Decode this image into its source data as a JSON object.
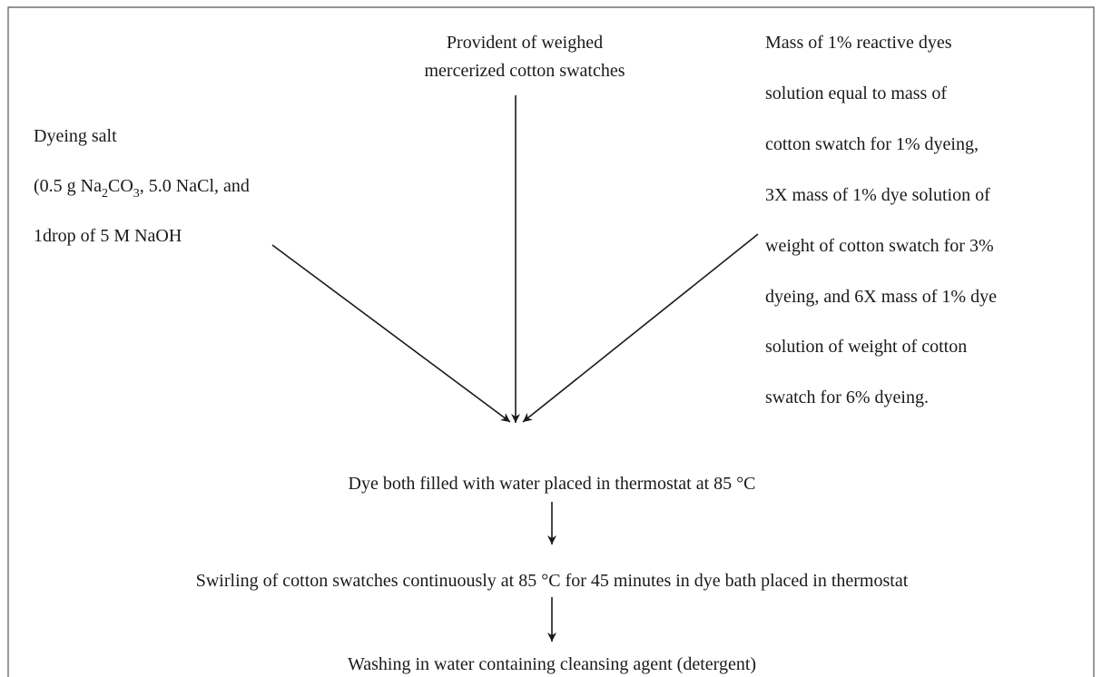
{
  "nodes": [
    {
      "id": "cotton",
      "lines": [
        "Provident of weighed",
        "mercerized cotton swatches"
      ]
    },
    {
      "id": "salt",
      "lines": [
        "Dyeing salt",
        "1drop of 5 M NaOH"
      ],
      "formula": [
        "(0.5 g Na",
        "2",
        "CO",
        "3",
        ", 5.0 NaCl, and"
      ]
    },
    {
      "id": "dye",
      "lines": [
        "Mass of 1% reactive dyes",
        "solution equal to mass of",
        "cotton swatch for 1% dyeing,",
        "3X mass of 1% dye solution of",
        "weight of cotton swatch for 3%",
        "dyeing, and 6X mass of 1% dye",
        "solution of weight of cotton",
        "swatch for 6% dyeing."
      ]
    },
    {
      "id": "bath",
      "lines": [
        "Dye both filled with water placed in thermostat at 85 °C"
      ]
    },
    {
      "id": "swirl",
      "lines": [
        "Swirling of cotton swatches continuously at 85 °C for 45 minutes in dye bath placed in thermostat"
      ]
    },
    {
      "id": "wash",
      "lines": [
        "Washing in water containing cleansing agent (detergent)"
      ]
    }
  ]
}
